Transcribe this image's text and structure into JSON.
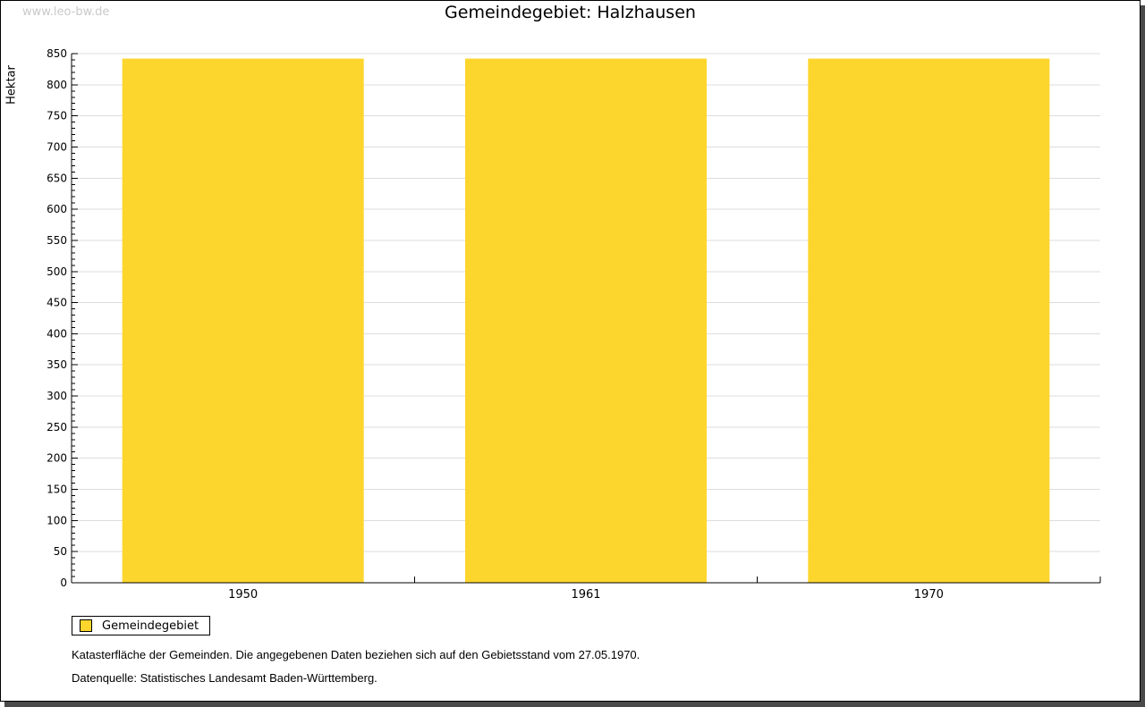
{
  "page": {
    "watermark": "www.leo-bw.de",
    "title": "Gemeindegebiet: Halzhausen"
  },
  "chart_data": {
    "type": "bar",
    "title": "Gemeindegebiet: Halzhausen",
    "xlabel": "",
    "ylabel": "Hektar",
    "categories": [
      "1950",
      "1961",
      "1970"
    ],
    "series": [
      {
        "name": "Gemeindegebiet",
        "values": [
          842,
          842,
          842
        ]
      }
    ],
    "ylim": [
      0,
      850
    ],
    "y_ticks": [
      0,
      50,
      100,
      150,
      200,
      250,
      300,
      350,
      400,
      450,
      500,
      550,
      600,
      650,
      700,
      750,
      800,
      850
    ],
    "y_minor_step": 10,
    "y_major_step": 50,
    "grid": "horizontal-major",
    "legend_position": "bottom-left",
    "bar_color": "#FDD62D"
  },
  "legend": {
    "label": "Gemeindegebiet",
    "swatch_color": "#FDD62D"
  },
  "footer": {
    "note": "Katasterfläche der Gemeinden. Die angegebenen Daten beziehen sich auf den Gebietsstand vom 27.05.1970.",
    "source": "Datenquelle: Statistisches Landesamt Baden-Württemberg."
  },
  "colors": {
    "gridline": "#dddddd",
    "axis": "#000000",
    "watermark": "#c9c9c9",
    "frame_shadow": "#4a4a4a"
  }
}
